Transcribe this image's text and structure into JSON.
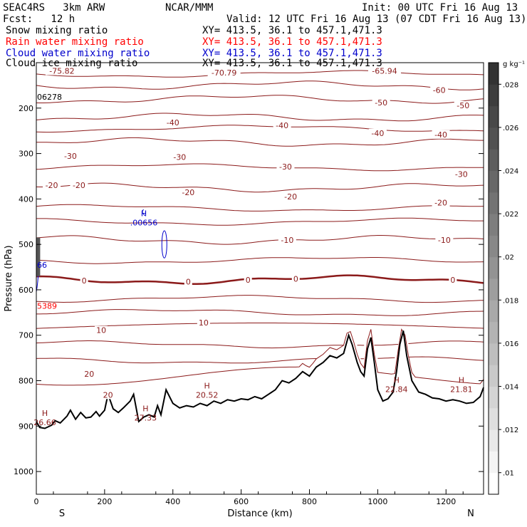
{
  "header": {
    "model": "SEAC4RS   3km ARW",
    "center": "NCAR/MMM",
    "init": "Init: 00 UTC Fri 16 Aug 13",
    "fcst": "Fcst:   12 h",
    "valid": "Valid: 12 UTC Fri 16 Aug 13 (07 CDT Fri 16 Aug 13)"
  },
  "fields": [
    {
      "name": "Snow mixing ratio",
      "xy": "XY= 413.5, 36.1 to 457.1,471.3",
      "color": "#000000"
    },
    {
      "name": "Rain water mixing ratio",
      "xy": "XY= 413.5, 36.1 to 457.1,471.3",
      "color": "#ff0000"
    },
    {
      "name": "Cloud water mixing ratio",
      "xy": "XY= 413.5, 36.1 to 457.1,471.3",
      "color": "#0000cc"
    },
    {
      "name": "Cloud ice mixing ratio",
      "xy": "XY= 413.5, 36.1 to 457.1,471.3",
      "color": "#000000"
    }
  ],
  "chart_data": {
    "type": "cross-section",
    "xlabel": "Distance (km)",
    "ylabel": "Pressure (hPa)",
    "xlim": [
      0,
      1310
    ],
    "ylim": [
      1050,
      100
    ],
    "x_ticks": [
      0,
      200,
      400,
      600,
      800,
      1000,
      1200
    ],
    "y_ticks": [
      200,
      300,
      400,
      500,
      600,
      700,
      800,
      900,
      1000
    ],
    "end_labels": {
      "left": "S",
      "right": "N"
    },
    "colorbar": {
      "unit": "g kg⁻¹",
      "ticks": [
        ".028",
        ".026",
        ".024",
        ".022",
        ".02",
        ".018",
        ".016",
        ".014",
        ".012",
        ".01"
      ],
      "levels": [
        0.009,
        0.029
      ]
    },
    "temperature_contours": [
      {
        "value": -60,
        "p": 150
      },
      {
        "value": -50,
        "p": 180
      },
      {
        "value": -40,
        "p": 220
      },
      {
        "value": -30,
        "p": 275
      },
      {
        "value": -20,
        "p": 375
      },
      {
        "value": -10,
        "p": 490
      },
      {
        "value": 0,
        "p": 578
      },
      {
        "value": 10,
        "p": 685
      },
      {
        "value": 20,
        "p": 790
      }
    ],
    "temperature_labels": [
      {
        "text": "-75.82",
        "x": 75,
        "p": 118
      },
      {
        "text": "-70.79",
        "x": 550,
        "p": 122
      },
      {
        "text": "-65.94",
        "x": 1020,
        "p": 118
      },
      {
        "text": "-60",
        "x": 1180,
        "p": 160
      },
      {
        "text": "-50",
        "x": 1010,
        "p": 188
      },
      {
        "text": "-50",
        "x": 1250,
        "p": 194
      },
      {
        "text": "-40",
        "x": 400,
        "p": 232
      },
      {
        "text": "-40",
        "x": 720,
        "p": 238
      },
      {
        "text": "-40",
        "x": 1000,
        "p": 255
      },
      {
        "text": "-40",
        "x": 1185,
        "p": 258
      },
      {
        "text": "-30",
        "x": 100,
        "p": 305
      },
      {
        "text": "-30",
        "x": 420,
        "p": 308
      },
      {
        "text": "-30",
        "x": 730,
        "p": 329
      },
      {
        "text": "-30",
        "x": 1245,
        "p": 345
      },
      {
        "text": "-20",
        "x": 45,
        "p": 370
      },
      {
        "text": "-20",
        "x": 125,
        "p": 370
      },
      {
        "text": "-20",
        "x": 445,
        "p": 385
      },
      {
        "text": "-20",
        "x": 745,
        "p": 395
      },
      {
        "text": "-20",
        "x": 1185,
        "p": 408
      },
      {
        "text": "-10",
        "x": 735,
        "p": 490
      },
      {
        "text": "-10",
        "x": 1195,
        "p": 490
      },
      {
        "text": "0",
        "x": 140,
        "p": 580
      },
      {
        "text": "0",
        "x": 445,
        "p": 582
      },
      {
        "text": "0",
        "x": 620,
        "p": 578
      },
      {
        "text": "0",
        "x": 760,
        "p": 576
      },
      {
        "text": "0",
        "x": 1220,
        "p": 578
      },
      {
        "text": "10",
        "x": 190,
        "p": 689
      },
      {
        "text": "10",
        "x": 490,
        "p": 672
      },
      {
        "text": "20",
        "x": 155,
        "p": 785
      },
      {
        "text": "20",
        "x": 210,
        "p": 831
      }
    ],
    "extrema": [
      {
        "letter": "H",
        "value": "26.66",
        "x": 25,
        "p": 890
      },
      {
        "letter": "H",
        "value": "27.33",
        "x": 320,
        "p": 880
      },
      {
        "letter": "H",
        "value": "20.52",
        "x": 500,
        "p": 830
      },
      {
        "letter": "H",
        "value": "22.84",
        "x": 1055,
        "p": 817
      },
      {
        "letter": "H",
        "value": "21.81",
        "x": 1245,
        "p": 817
      },
      {
        "letter": "H",
        "value": ".00656",
        "x": 315,
        "p": 450
      }
    ],
    "edge_labels": [
      {
        "text": "06278",
        "x": 0,
        "p": 175
      },
      {
        "text": "66",
        "x": 0,
        "p": 545
      },
      {
        "text": "5389",
        "x": 0,
        "p": 635
      }
    ],
    "terrain": [
      [
        0,
        890
      ],
      [
        10,
        903
      ],
      [
        25,
        905
      ],
      [
        45,
        898
      ],
      [
        55,
        888
      ],
      [
        70,
        893
      ],
      [
        90,
        878
      ],
      [
        100,
        865
      ],
      [
        115,
        885
      ],
      [
        130,
        870
      ],
      [
        145,
        882
      ],
      [
        160,
        880
      ],
      [
        175,
        868
      ],
      [
        185,
        878
      ],
      [
        200,
        865
      ],
      [
        210,
        830
      ],
      [
        225,
        862
      ],
      [
        240,
        870
      ],
      [
        255,
        860
      ],
      [
        275,
        845
      ],
      [
        285,
        830
      ],
      [
        300,
        890
      ],
      [
        315,
        880
      ],
      [
        330,
        875
      ],
      [
        345,
        880
      ],
      [
        355,
        855
      ],
      [
        365,
        875
      ],
      [
        380,
        820
      ],
      [
        400,
        850
      ],
      [
        420,
        860
      ],
      [
        440,
        855
      ],
      [
        460,
        858
      ],
      [
        480,
        850
      ],
      [
        500,
        855
      ],
      [
        520,
        845
      ],
      [
        540,
        850
      ],
      [
        560,
        842
      ],
      [
        580,
        845
      ],
      [
        600,
        840
      ],
      [
        620,
        842
      ],
      [
        640,
        835
      ],
      [
        660,
        840
      ],
      [
        680,
        830
      ],
      [
        700,
        820
      ],
      [
        720,
        800
      ],
      [
        740,
        805
      ],
      [
        760,
        795
      ],
      [
        780,
        780
      ],
      [
        800,
        790
      ],
      [
        820,
        770
      ],
      [
        840,
        760
      ],
      [
        860,
        745
      ],
      [
        880,
        750
      ],
      [
        900,
        740
      ],
      [
        915,
        700
      ],
      [
        925,
        720
      ],
      [
        940,
        760
      ],
      [
        950,
        780
      ],
      [
        960,
        790
      ],
      [
        970,
        730
      ],
      [
        980,
        705
      ],
      [
        990,
        760
      ],
      [
        1000,
        820
      ],
      [
        1015,
        845
      ],
      [
        1030,
        840
      ],
      [
        1045,
        825
      ],
      [
        1055,
        780
      ],
      [
        1065,
        720
      ],
      [
        1075,
        690
      ],
      [
        1085,
        745
      ],
      [
        1100,
        800
      ],
      [
        1120,
        825
      ],
      [
        1140,
        830
      ],
      [
        1160,
        838
      ],
      [
        1180,
        840
      ],
      [
        1200,
        845
      ],
      [
        1220,
        842
      ],
      [
        1240,
        845
      ],
      [
        1260,
        850
      ],
      [
        1280,
        848
      ],
      [
        1300,
        835
      ],
      [
        1310,
        815
      ]
    ],
    "cloud_water_contour": {
      "x": 375,
      "p_top": 470,
      "p_bottom": 530,
      "half_width_km": 6
    },
    "snow_shading": {
      "x": 5,
      "p_top": 485,
      "p_bottom": 570
    }
  }
}
